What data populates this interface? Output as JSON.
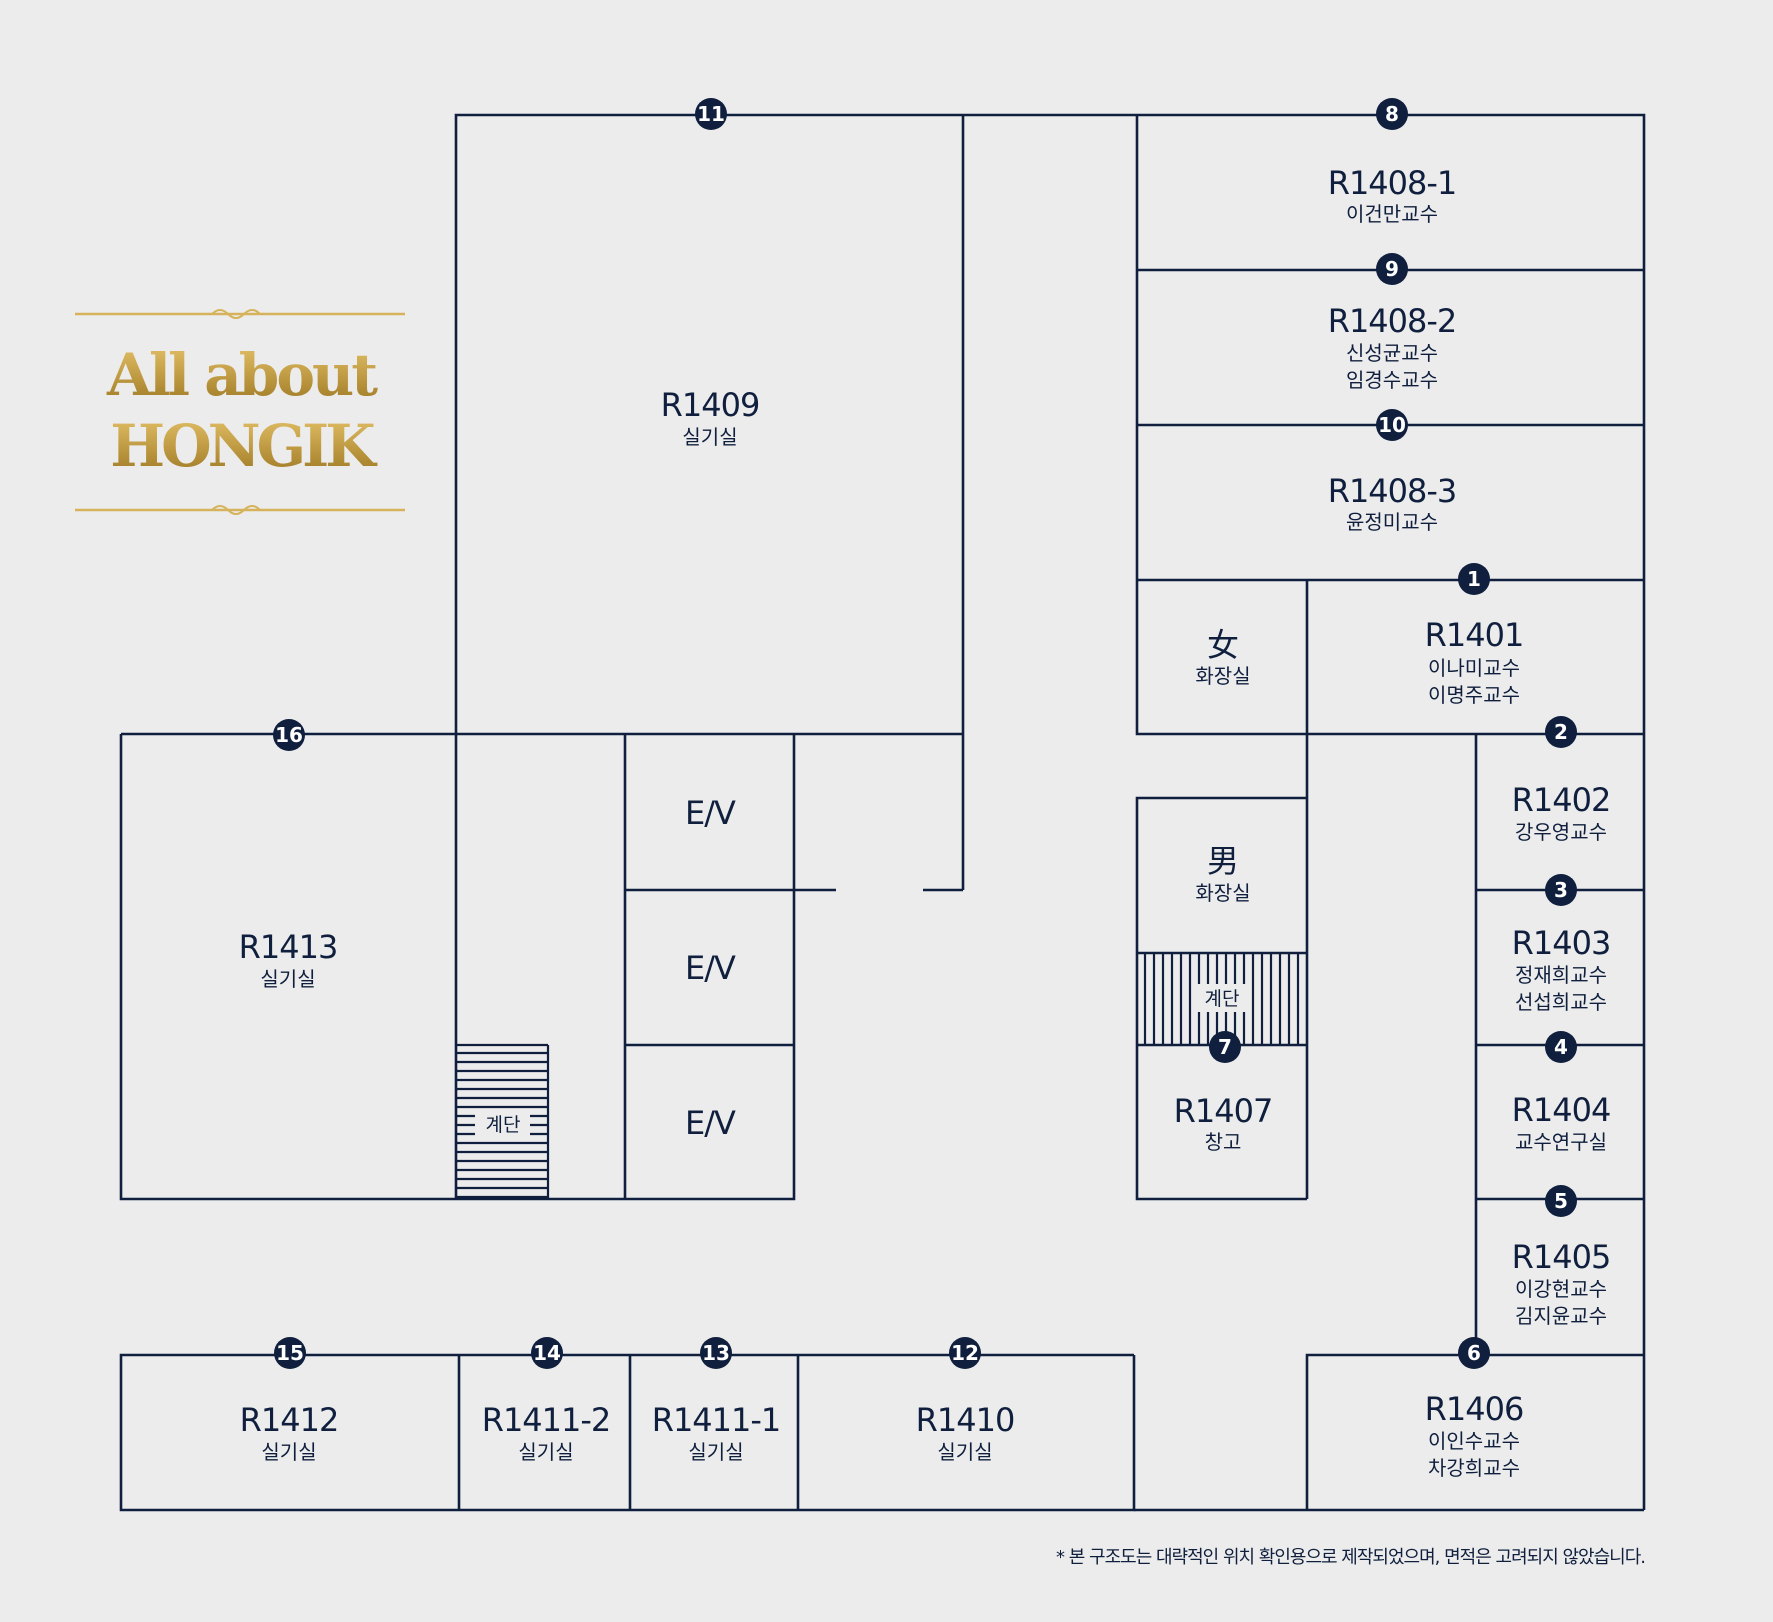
{
  "logo": {
    "line1": "All about",
    "line2": "HONGIK",
    "color_light": "#e6c36a",
    "color_dark": "#9b7520"
  },
  "rooms": {
    "r1409": {
      "code": "R1409",
      "sub": [
        "실기실"
      ]
    },
    "r1408_1": {
      "code": "R1408-1",
      "sub": [
        "이건만교수"
      ]
    },
    "r1408_2": {
      "code": "R1408-2",
      "sub": [
        "신성균교수",
        "임경수교수"
      ]
    },
    "r1408_3": {
      "code": "R1408-3",
      "sub": [
        "윤정미교수"
      ]
    },
    "r1401": {
      "code": "R1401",
      "sub": [
        "이나미교수",
        "이명주교수"
      ]
    },
    "r1402": {
      "code": "R1402",
      "sub": [
        "강우영교수"
      ]
    },
    "r1403": {
      "code": "R1403",
      "sub": [
        "정재희교수",
        "선섭희교수"
      ]
    },
    "r1404": {
      "code": "R1404",
      "sub": [
        "교수연구실"
      ]
    },
    "r1405": {
      "code": "R1405",
      "sub": [
        "이강현교수",
        "김지윤교수"
      ]
    },
    "r1406": {
      "code": "R1406",
      "sub": [
        "이인수교수",
        "차강희교수"
      ]
    },
    "r1407": {
      "code": "R1407",
      "sub": [
        "창고"
      ]
    },
    "r1413": {
      "code": "R1413",
      "sub": [
        "실기실"
      ]
    },
    "r1412": {
      "code": "R1412",
      "sub": [
        "실기실"
      ]
    },
    "r1411_2": {
      "code": "R1411-2",
      "sub": [
        "실기실"
      ]
    },
    "r1411_1": {
      "code": "R1411-1",
      "sub": [
        "실기실"
      ]
    },
    "r1410": {
      "code": "R1410",
      "sub": [
        "실기실"
      ]
    }
  },
  "womens_restroom": {
    "symbol": "女",
    "label": "화장실"
  },
  "mens_restroom": {
    "symbol": "男",
    "label": "화장실"
  },
  "elevators": [
    "E/V",
    "E/V",
    "E/V"
  ],
  "stairs_label": "계단",
  "markers": [
    "1",
    "2",
    "3",
    "4",
    "5",
    "6",
    "7",
    "8",
    "9",
    "10",
    "11",
    "12",
    "13",
    "14",
    "15",
    "16"
  ],
  "footnote": "* 본 구조도는 대략적인 위치 확인용으로 제작되었으며, 면적은 고려되지 않았습니다."
}
